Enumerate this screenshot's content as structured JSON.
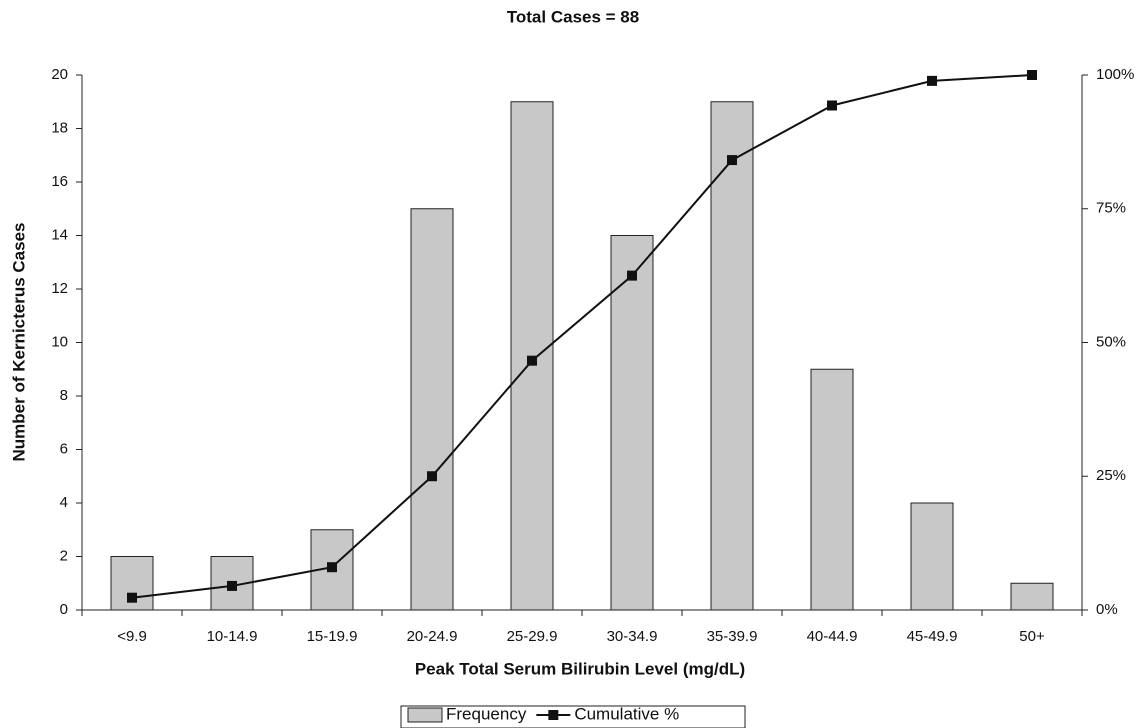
{
  "chart_data": {
    "type": "bar",
    "title": "Total Cases = 88",
    "x_label": "Peak Total Serum Bilirubin Level (mg/dL)",
    "y_label": "Number of Kernicterus Cases",
    "categories": [
      "<9.9",
      "10-14.9",
      "15-19.9",
      "20-24.9",
      "25-29.9",
      "30-34.9",
      "35-39.9",
      "40-44.9",
      "45-49.9",
      "50+"
    ],
    "series": [
      {
        "name": "Frequency",
        "type": "bar",
        "color": "#c8c8c8",
        "values": [
          2,
          2,
          3,
          15,
          19,
          14,
          19,
          9,
          4,
          1
        ]
      },
      {
        "name": "Cumulative %",
        "type": "line",
        "axis": "y2",
        "color": "#111111",
        "values": [
          2.3,
          4.5,
          8,
          25,
          46.6,
          62.5,
          84.1,
          94.3,
          98.9,
          100
        ]
      }
    ],
    "ylim": [
      0,
      20
    ],
    "yticks": [
      0,
      2,
      4,
      6,
      8,
      10,
      12,
      14,
      16,
      18,
      20
    ],
    "y2lim": [
      0,
      100
    ],
    "y2ticks": [
      {
        "value": 0,
        "label": "0%"
      },
      {
        "value": 25,
        "label": "25%"
      },
      {
        "value": 50,
        "label": "50%"
      },
      {
        "value": 75,
        "label": "75%"
      },
      {
        "value": 100,
        "label": "100%"
      }
    ],
    "grid": false,
    "legend": "bottom"
  }
}
